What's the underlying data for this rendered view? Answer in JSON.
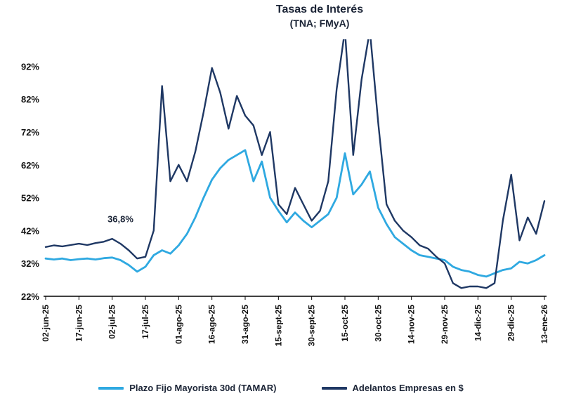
{
  "chart_data": {
    "type": "line",
    "title": "Tasas de Interés",
    "subtitle": "(TNA; FMyA)",
    "x_labels": [
      "02-jun-25",
      "17-jun-25",
      "02-jul-25",
      "17-jul-25",
      "01-ago-25",
      "16-ago-25",
      "31-ago-25",
      "15-sept-25",
      "30-sept-25",
      "15-oct-25",
      "30-oct-25",
      "14-nov-25",
      "29-nov-25",
      "14-dic-25",
      "29-dic-25",
      "13-ene-26"
    ],
    "points_per_label_interval": 4,
    "y_ticks": [
      22,
      32,
      42,
      52,
      62,
      72,
      82,
      92
    ],
    "y_tick_suffix": "%",
    "ylim": [
      22,
      100
    ],
    "grid": false,
    "legend_position": "bottom",
    "annotation": {
      "text": "36,8%",
      "x_index": 9,
      "value": 44.5
    },
    "series": [
      {
        "name": "Plazo Fijo Mayorista 30d (TAMAR)",
        "color": "#2FA9E1",
        "values": [
          33.5,
          33.2,
          33.5,
          33.0,
          33.3,
          33.5,
          33.2,
          33.6,
          33.8,
          33.0,
          31.5,
          29.5,
          31.0,
          34.5,
          36.0,
          35.0,
          37.5,
          41.0,
          46.0,
          52.0,
          57.5,
          61.0,
          63.5,
          65.0,
          66.5,
          57.0,
          63.0,
          52.0,
          48.0,
          44.5,
          47.5,
          45.0,
          43.0,
          45.0,
          47.0,
          52.0,
          65.5,
          53.0,
          56.0,
          60.0,
          49.0,
          44.0,
          40.0,
          38.0,
          36.0,
          34.5,
          34.0,
          33.5,
          33.0,
          31.0,
          30.0,
          29.5,
          28.5,
          28.0,
          29.0,
          30.0,
          30.5,
          32.5,
          32.0,
          33.0,
          34.5
        ]
      },
      {
        "name": "Adelantos Empresas en $",
        "color": "#1F3864",
        "values": [
          37.0,
          37.5,
          37.2,
          37.6,
          38.0,
          37.6,
          38.2,
          38.6,
          39.5,
          38.0,
          36.0,
          33.5,
          34.0,
          42.0,
          86.0,
          57.0,
          62.0,
          57.0,
          66.0,
          78.0,
          91.5,
          84.0,
          73.0,
          83.0,
          77.0,
          74.0,
          65.0,
          72.0,
          50.0,
          47.0,
          55.0,
          50.0,
          45.0,
          48.0,
          57.0,
          85.0,
          103.0,
          65.0,
          88.0,
          103.0,
          75.0,
          50.0,
          45.0,
          42.0,
          40.0,
          37.5,
          36.5,
          34.0,
          32.0,
          26.0,
          24.5,
          25.0,
          25.0,
          24.5,
          26.0,
          45.0,
          59.0,
          39.0,
          46.0,
          41.0,
          51.0
        ]
      }
    ]
  },
  "colors": {
    "axis": "#000000",
    "tick_text": "#111111",
    "title_text": "#1b2436"
  }
}
